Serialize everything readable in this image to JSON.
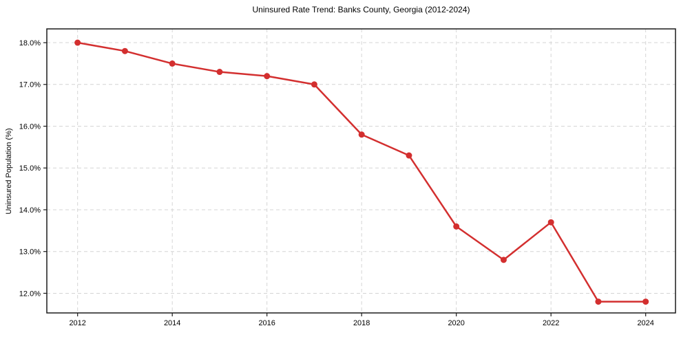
{
  "chart_data": {
    "type": "line",
    "title": "Uninsured Rate Trend: Banks County, Georgia (2012-2024)",
    "xlabel": "",
    "ylabel": "Uninsured Population (%)",
    "x": [
      2012,
      2013,
      2014,
      2015,
      2016,
      2017,
      2018,
      2019,
      2020,
      2021,
      2022,
      2023,
      2024
    ],
    "series": [
      {
        "name": "Uninsured rate",
        "values": [
          18.0,
          17.8,
          17.5,
          17.3,
          17.2,
          17.0,
          15.8,
          15.3,
          13.6,
          12.8,
          13.7,
          11.8,
          11.8
        ]
      }
    ],
    "xticks": {
      "values": [
        2012,
        2014,
        2016,
        2018,
        2020,
        2022,
        2024
      ],
      "labels": [
        "2012",
        "2014",
        "2016",
        "2018",
        "2020",
        "2022",
        "2024"
      ]
    },
    "yticks": {
      "values": [
        12,
        13,
        14,
        15,
        16,
        17,
        18
      ],
      "labels": [
        "12.0%",
        "13.0%",
        "14.0%",
        "15.0%",
        "16.0%",
        "17.0%",
        "18.0%"
      ]
    },
    "xlim": [
      2011.35,
      2024.63
    ],
    "ylim": [
      11.53,
      18.33
    ],
    "grid": true,
    "grid_style": "dashed",
    "legend": false,
    "marker": "circle"
  },
  "colors": {
    "line": "#d32f2f",
    "marker": "#d32f2f",
    "grid": "#d4d4d4",
    "axis": "#1a1a1a",
    "text": "#000000",
    "background": "#ffffff"
  }
}
